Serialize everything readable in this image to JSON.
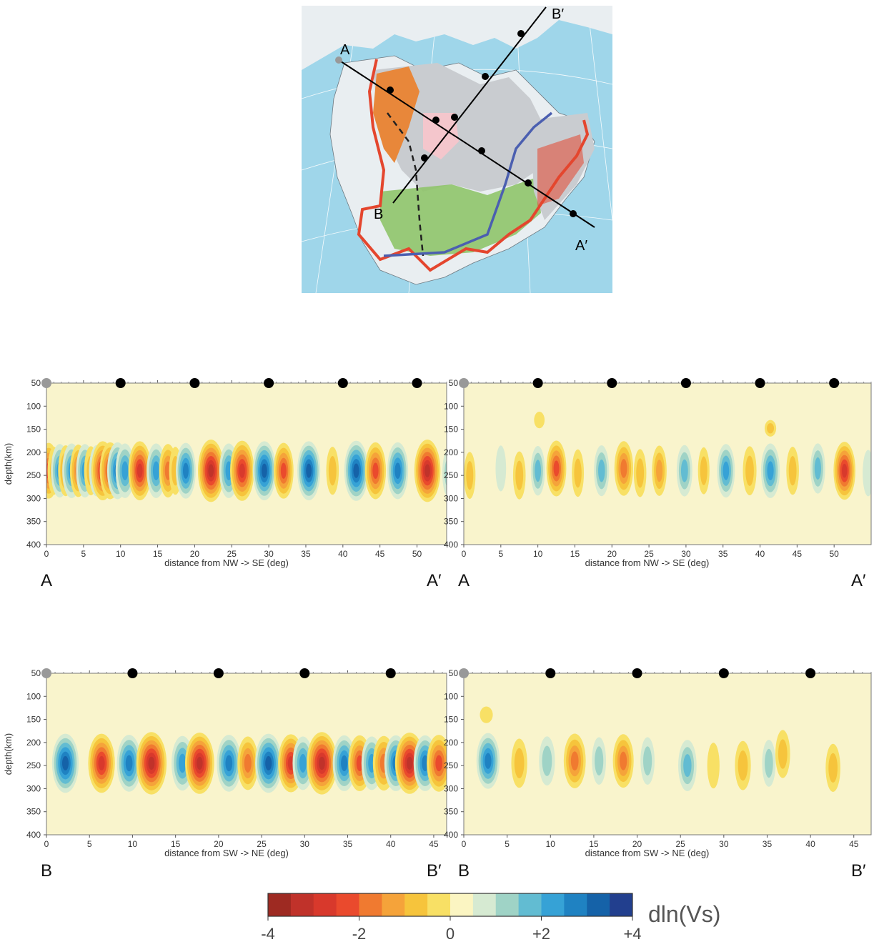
{
  "map": {
    "labels": {
      "a": "A",
      "a_prime": "A′",
      "b": "B",
      "b_prime": "B′"
    },
    "colors": {
      "ocean": "#9fd6ea",
      "land": "#e9eef1",
      "craton": "#c9ccd0",
      "orogen": "#e8873a",
      "platform": "#8fc46a",
      "boundary": "#e4462e",
      "front": "#4b5fb0"
    }
  },
  "chart_data": [
    {
      "type": "heatmap",
      "panel": "top-left",
      "xlabel": "distance from NW -> SE (deg)",
      "ylabel": "depth(km)",
      "xticks": [
        0,
        5,
        10,
        15,
        20,
        25,
        30,
        35,
        40,
        45,
        50
      ],
      "yticks": [
        50,
        100,
        150,
        200,
        250,
        300,
        350,
        400
      ],
      "xlim": [
        0,
        54
      ],
      "ylim": [
        50,
        400
      ],
      "markers_gray": [
        0
      ],
      "markers_black": [
        10,
        20,
        30,
        40,
        50
      ],
      "end_labels": [
        "A",
        "A′"
      ],
      "anomalies": [
        {
          "x": 0.3,
          "depth": 240,
          "value": -2.4
        },
        {
          "x": 1.0,
          "depth": 240,
          "value": -1.0
        },
        {
          "x": 1.8,
          "depth": 240,
          "value": 2.0
        },
        {
          "x": 2.6,
          "depth": 240,
          "value": -1.5
        },
        {
          "x": 3.4,
          "depth": 240,
          "value": 2.2
        },
        {
          "x": 4.3,
          "depth": 240,
          "value": -1.8
        },
        {
          "x": 5.2,
          "depth": 240,
          "value": 2.0
        },
        {
          "x": 6.0,
          "depth": 240,
          "value": -1.2
        },
        {
          "x": 6.8,
          "depth": 240,
          "value": 1.6
        },
        {
          "x": 7.6,
          "depth": 240,
          "value": -3.0
        },
        {
          "x": 8.6,
          "depth": 240,
          "value": -2.6
        },
        {
          "x": 9.6,
          "depth": 240,
          "value": 2.6
        },
        {
          "x": 10.6,
          "depth": 240,
          "value": 2.2
        },
        {
          "x": 12.6,
          "depth": 240,
          "value": -3.0
        },
        {
          "x": 14.8,
          "depth": 240,
          "value": 2.2
        },
        {
          "x": 16.4,
          "depth": 240,
          "value": -2.0
        },
        {
          "x": 17.4,
          "depth": 240,
          "value": -1.0
        },
        {
          "x": 18.8,
          "depth": 240,
          "value": 2.4
        },
        {
          "x": 22.2,
          "depth": 240,
          "value": -3.6
        },
        {
          "x": 24.6,
          "depth": 240,
          "value": 2.2
        },
        {
          "x": 26.4,
          "depth": 240,
          "value": -3.2
        },
        {
          "x": 29.4,
          "depth": 240,
          "value": 3.0
        },
        {
          "x": 32.0,
          "depth": 240,
          "value": -2.4
        },
        {
          "x": 35.4,
          "depth": 240,
          "value": 3.0
        },
        {
          "x": 38.6,
          "depth": 240,
          "value": -1.0
        },
        {
          "x": 41.8,
          "depth": 240,
          "value": 3.2
        },
        {
          "x": 44.4,
          "depth": 240,
          "value": -2.6
        },
        {
          "x": 47.4,
          "depth": 240,
          "value": 2.6
        },
        {
          "x": 51.4,
          "depth": 240,
          "value": -3.6
        },
        {
          "x": 54.2,
          "depth": 245,
          "value": 0.8
        }
      ]
    },
    {
      "type": "heatmap",
      "panel": "top-right",
      "xlabel": "distance from NW -> SE (deg)",
      "ylabel": "",
      "xticks": [
        0,
        5,
        10,
        15,
        20,
        25,
        30,
        35,
        40,
        45,
        50
      ],
      "yticks": [
        50,
        100,
        150,
        200,
        250,
        300,
        350,
        400
      ],
      "xlim": [
        0,
        55
      ],
      "ylim": [
        50,
        400
      ],
      "markers_gray": [
        0
      ],
      "markers_black": [
        10,
        20,
        30,
        40,
        50
      ],
      "end_labels": [
        "A",
        "A′"
      ],
      "anomalies": [
        {
          "x": 0.8,
          "depth": 250,
          "value": -0.8
        },
        {
          "x": 5.0,
          "depth": 235,
          "value": 0.6
        },
        {
          "x": 7.5,
          "depth": 250,
          "value": -1.0
        },
        {
          "x": 10.0,
          "depth": 240,
          "value": 1.3
        },
        {
          "x": 12.5,
          "depth": 235,
          "value": -2.4
        },
        {
          "x": 15.4,
          "depth": 245,
          "value": -0.9
        },
        {
          "x": 18.6,
          "depth": 240,
          "value": 1.5
        },
        {
          "x": 21.6,
          "depth": 235,
          "value": -2.2
        },
        {
          "x": 23.8,
          "depth": 245,
          "value": -1.0
        },
        {
          "x": 26.4,
          "depth": 240,
          "value": -1.4
        },
        {
          "x": 29.8,
          "depth": 240,
          "value": 1.6
        },
        {
          "x": 32.4,
          "depth": 240,
          "value": -0.8
        },
        {
          "x": 35.4,
          "depth": 240,
          "value": 2.0
        },
        {
          "x": 38.6,
          "depth": 240,
          "value": -1.2
        },
        {
          "x": 41.4,
          "depth": 240,
          "value": 2.2
        },
        {
          "x": 44.4,
          "depth": 240,
          "value": -1.0
        },
        {
          "x": 47.8,
          "depth": 235,
          "value": 1.4
        },
        {
          "x": 51.4,
          "depth": 240,
          "value": -2.8
        },
        {
          "x": 54.6,
          "depth": 245,
          "value": 0.7
        },
        {
          "x": 10.2,
          "depth": 130,
          "value": -0.6
        },
        {
          "x": 41.4,
          "depth": 148,
          "value": -0.8
        }
      ]
    },
    {
      "type": "heatmap",
      "panel": "bottom-left",
      "xlabel": "distance from SW -> NE (deg)",
      "ylabel": "depth(km)",
      "xticks": [
        0,
        5,
        10,
        15,
        20,
        25,
        30,
        35,
        40,
        45
      ],
      "yticks": [
        50,
        100,
        150,
        200,
        250,
        300,
        350,
        400
      ],
      "xlim": [
        0,
        46.5
      ],
      "ylim": [
        50,
        400
      ],
      "markers_gray": [
        0
      ],
      "markers_black": [
        10,
        20,
        30,
        40
      ],
      "end_labels": [
        "B",
        "B′"
      ],
      "anomalies": [
        {
          "x": 2.2,
          "depth": 245,
          "value": 3.0
        },
        {
          "x": 6.4,
          "depth": 245,
          "value": -3.0
        },
        {
          "x": 9.6,
          "depth": 245,
          "value": 2.6
        },
        {
          "x": 12.2,
          "depth": 245,
          "value": -3.6
        },
        {
          "x": 15.8,
          "depth": 245,
          "value": 2.2
        },
        {
          "x": 17.8,
          "depth": 245,
          "value": -3.4
        },
        {
          "x": 21.2,
          "depth": 245,
          "value": 2.6
        },
        {
          "x": 23.4,
          "depth": 245,
          "value": -2.0
        },
        {
          "x": 25.8,
          "depth": 245,
          "value": 3.0
        },
        {
          "x": 28.4,
          "depth": 245,
          "value": -2.8
        },
        {
          "x": 29.8,
          "depth": 245,
          "value": 2.0
        },
        {
          "x": 32.0,
          "depth": 245,
          "value": -3.6
        },
        {
          "x": 34.6,
          "depth": 245,
          "value": 2.4
        },
        {
          "x": 36.4,
          "depth": 245,
          "value": -2.4
        },
        {
          "x": 37.8,
          "depth": 245,
          "value": 2.0
        },
        {
          "x": 39.2,
          "depth": 245,
          "value": -2.2
        },
        {
          "x": 40.6,
          "depth": 245,
          "value": 2.4
        },
        {
          "x": 42.2,
          "depth": 245,
          "value": -3.4
        },
        {
          "x": 44.0,
          "depth": 245,
          "value": 2.4
        },
        {
          "x": 45.6,
          "depth": 245,
          "value": -2.6
        }
      ]
    },
    {
      "type": "heatmap",
      "panel": "bottom-right",
      "xlabel": "distance from SW -> NE (deg)",
      "ylabel": "",
      "xticks": [
        0,
        5,
        10,
        15,
        20,
        25,
        30,
        35,
        40,
        45
      ],
      "yticks": [
        50,
        100,
        150,
        200,
        250,
        300,
        350,
        400
      ],
      "xlim": [
        0,
        47
      ],
      "ylim": [
        50,
        400
      ],
      "markers_gray": [
        0
      ],
      "markers_black": [
        10,
        20,
        30,
        40
      ],
      "end_labels": [
        "B",
        "B′"
      ],
      "anomalies": [
        {
          "x": 2.8,
          "depth": 240,
          "value": 2.4
        },
        {
          "x": 6.4,
          "depth": 245,
          "value": -1.2
        },
        {
          "x": 9.6,
          "depth": 240,
          "value": 1.2
        },
        {
          "x": 12.8,
          "depth": 240,
          "value": -2.2
        },
        {
          "x": 15.6,
          "depth": 240,
          "value": 0.9
        },
        {
          "x": 18.4,
          "depth": 240,
          "value": -2.0
        },
        {
          "x": 21.2,
          "depth": 240,
          "value": 0.9
        },
        {
          "x": 25.8,
          "depth": 250,
          "value": 1.6
        },
        {
          "x": 28.8,
          "depth": 250,
          "value": -0.6
        },
        {
          "x": 32.2,
          "depth": 250,
          "value": -1.2
        },
        {
          "x": 35.2,
          "depth": 245,
          "value": 0.8
        },
        {
          "x": 36.8,
          "depth": 225,
          "value": -1.0
        },
        {
          "x": 42.6,
          "depth": 255,
          "value": -1.0
        },
        {
          "x": 2.6,
          "depth": 140,
          "value": -0.7
        }
      ]
    }
  ],
  "colorbar": {
    "label": "dln(Vs)",
    "tick_labels": [
      "-4",
      "-2",
      "0",
      "+2",
      "+4"
    ],
    "tick_values": [
      -4,
      -2,
      0,
      2,
      4
    ],
    "colors": [
      "#9e2a22",
      "#c0322a",
      "#d8392c",
      "#ea4a2d",
      "#f07a30",
      "#f5a33a",
      "#f6c43c",
      "#f8e065",
      "#fbf5c2",
      "#d6ead2",
      "#9fd3c6",
      "#62bcd2",
      "#36a2d6",
      "#1f82c2",
      "#1562a8",
      "#223f8e"
    ]
  },
  "background_color": "#f9f4cc"
}
